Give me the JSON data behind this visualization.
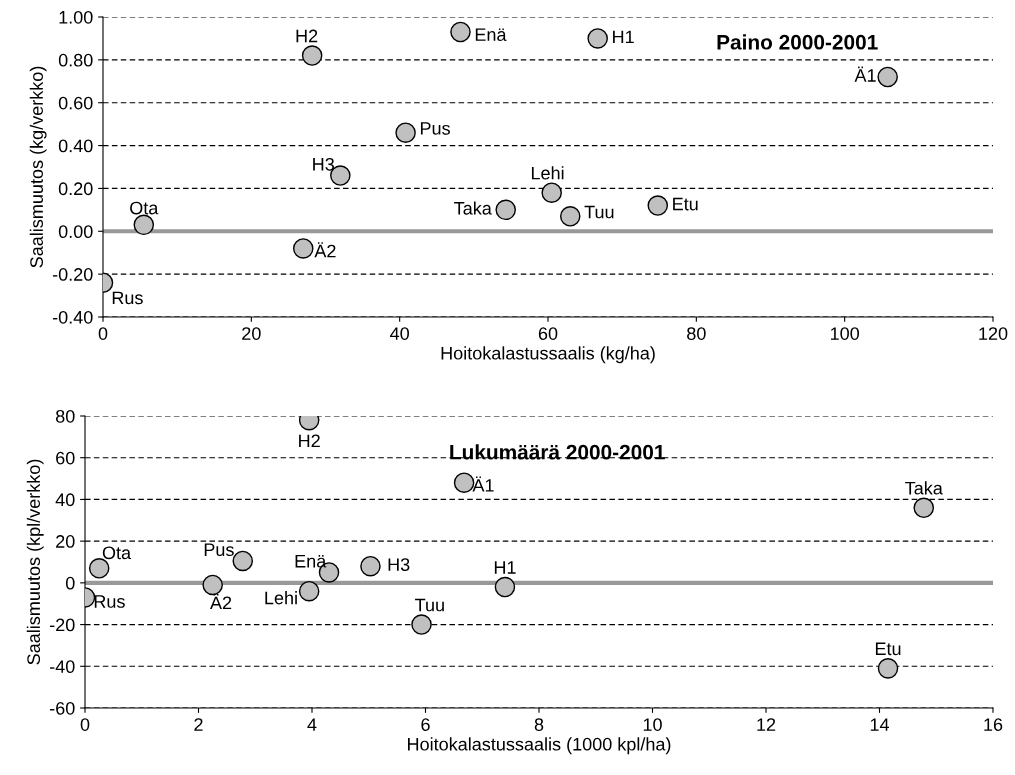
{
  "chart_data": [
    {
      "type": "scatter",
      "title": "Paino 2000-2001",
      "xlabel": "Hoitokalastussaalis (kg/ha)",
      "ylabel": "Saalismuutos (kg/verkko)",
      "x": [
        0,
        5.5,
        27,
        28.2,
        32,
        40.8,
        48.2,
        54.3,
        60.5,
        63,
        66.7,
        74.8,
        105.8
      ],
      "series": [
        {
          "color": "#c0c0c0",
          "values": [
            -0.24,
            0.03,
            -0.08,
            0.82,
            0.26,
            0.46,
            0.93,
            0.1,
            0.18,
            0.07,
            0.9,
            0.12,
            0.72
          ]
        }
      ],
      "annotations": [
        {
          "text": "Rus",
          "x": 0,
          "y": -0.24
        },
        {
          "text": "Ota",
          "x": 5.5,
          "y": 0.03
        },
        {
          "text": "Ä2",
          "x": 27,
          "y": -0.08
        },
        {
          "text": "H2",
          "x": 28.2,
          "y": 0.82
        },
        {
          "text": "H3",
          "x": 32,
          "y": 0.26
        },
        {
          "text": "Pus",
          "x": 40.8,
          "y": 0.46
        },
        {
          "text": "Enä",
          "x": 48.2,
          "y": 0.93
        },
        {
          "text": "Taka",
          "x": 54.3,
          "y": 0.1
        },
        {
          "text": "Lehi",
          "x": 60.5,
          "y": 0.18
        },
        {
          "text": "Tuu",
          "x": 63,
          "y": 0.07
        },
        {
          "text": "H1",
          "x": 66.7,
          "y": 0.9
        },
        {
          "text": "Etu",
          "x": 74.8,
          "y": 0.12
        },
        {
          "text": "Ä1",
          "x": 105.8,
          "y": 0.72
        }
      ],
      "xlim": [
        0,
        120
      ],
      "xticks": [
        0,
        20,
        40,
        60,
        80,
        100,
        120
      ],
      "ylim": [
        -0.4,
        1.0
      ],
      "yticks": [
        {
          "value": -0.4,
          "label": "-0.40"
        },
        {
          "value": -0.2,
          "label": "-0.20"
        },
        {
          "value": 0,
          "label": "0.00"
        },
        {
          "value": 0.2,
          "label": "0.20"
        },
        {
          "value": 0.4,
          "label": "0.40"
        },
        {
          "value": 0.6,
          "label": "0.60"
        },
        {
          "value": 0.8,
          "label": "0.80"
        },
        {
          "value": 1.0,
          "label": "1.00"
        }
      ],
      "ref_lines": [
        {
          "axis": "y",
          "value": 0,
          "color": "#999999"
        }
      ],
      "grid": "y",
      "marker": "circle"
    },
    {
      "type": "scatter",
      "title": "Lukumäärä 2000-2001",
      "xlabel": "Hoitokalastussaalis (1000 kpl/ha)",
      "ylabel": "Saalismuutos (kpl/verkko)",
      "x": [
        0,
        0.25,
        2.25,
        2.78,
        3.95,
        3.95,
        4.3,
        5.03,
        5.93,
        6.68,
        7.4,
        14.15,
        14.78
      ],
      "series": [
        {
          "color": "#c0c0c0",
          "values": [
            -7,
            7,
            -1,
            10.5,
            78,
            -4,
            5,
            8,
            -20,
            48,
            -2,
            -41,
            36
          ]
        }
      ],
      "annotations": [
        {
          "text": "Rus",
          "x": 0,
          "y": -7
        },
        {
          "text": "Ota",
          "x": 0.25,
          "y": 7
        },
        {
          "text": "Ä2",
          "x": 2.25,
          "y": -1
        },
        {
          "text": "Pus",
          "x": 2.78,
          "y": 10.5
        },
        {
          "text": "H2",
          "x": 3.95,
          "y": 78
        },
        {
          "text": "Lehi",
          "x": 3.95,
          "y": -4
        },
        {
          "text": "Enä",
          "x": 4.3,
          "y": 5
        },
        {
          "text": "H3",
          "x": 5.03,
          "y": 8
        },
        {
          "text": "Tuu",
          "x": 5.93,
          "y": -20
        },
        {
          "text": "Ä1",
          "x": 6.68,
          "y": 48
        },
        {
          "text": "H1",
          "x": 7.4,
          "y": -2
        },
        {
          "text": "Etu",
          "x": 14.15,
          "y": -41
        },
        {
          "text": "Taka",
          "x": 14.78,
          "y": 36
        }
      ],
      "xlim": [
        0,
        16
      ],
      "xticks": [
        0,
        2,
        4,
        6,
        8,
        10,
        12,
        14,
        16
      ],
      "ylim": [
        -60,
        80
      ],
      "yticks": [
        -60,
        -40,
        -20,
        0,
        20,
        40,
        60,
        80
      ],
      "ref_lines": [
        {
          "axis": "y",
          "value": 0,
          "color": "#999999"
        }
      ],
      "grid": "y",
      "marker": "circle"
    }
  ]
}
